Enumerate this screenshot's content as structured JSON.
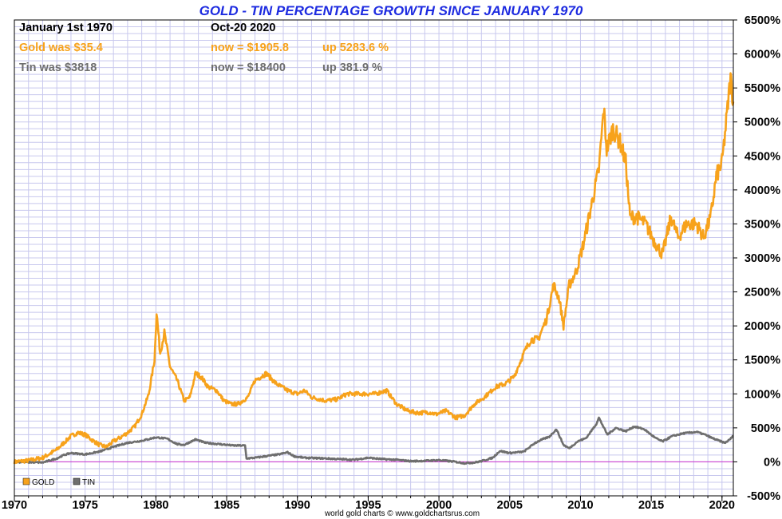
{
  "header": {
    "start_label": "January 1st 1970",
    "end_label": "Oct-20  2020",
    "gold_was": "Gold was $35.4",
    "gold_now": "now = $1905.8",
    "gold_up": "up 5283.6 %",
    "tin_was": "Tin was $3818",
    "tin_now": "now = $18400",
    "tin_up": "up 381.9 %"
  },
  "footer": {
    "credit": "world gold charts © www.goldchartsrus.com"
  },
  "colors": {
    "gold": "#f7a21b",
    "tin": "#6e6e6e",
    "zero_line": "#cc33cc",
    "grid": "#c8c8ee",
    "title": "#1d2be0"
  },
  "chart_data": {
    "type": "line",
    "title": "GOLD - TIN PERCENTAGE GROWTH SINCE JANUARY 1970",
    "xlabel": "",
    "ylabel": "",
    "xlim": [
      1970,
      2020.8
    ],
    "ylim": [
      -500,
      6500
    ],
    "x_ticks": [
      "1970",
      "1975",
      "1980",
      "1985",
      "1990",
      "1995",
      "2000",
      "2005",
      "2010",
      "2015",
      "2020"
    ],
    "y_ticks": [
      "6500%",
      "6000%",
      "5500%",
      "5000%",
      "4500%",
      "4000%",
      "3500%",
      "3000%",
      "2500%",
      "2000%",
      "1500%",
      "1000%",
      "500%",
      "0%",
      "-500%"
    ],
    "grid": true,
    "legend_position": "bottom-left",
    "series": [
      {
        "name": "GOLD",
        "color": "#f7a21b",
        "points": [
          [
            1970,
            0
          ],
          [
            1971,
            20
          ],
          [
            1972,
            60
          ],
          [
            1973,
            180
          ],
          [
            1973.6,
            300
          ],
          [
            1974,
            380
          ],
          [
            1974.5,
            430
          ],
          [
            1975,
            400
          ],
          [
            1975.5,
            320
          ],
          [
            1976,
            250
          ],
          [
            1976.5,
            220
          ],
          [
            1977,
            300
          ],
          [
            1977.5,
            360
          ],
          [
            1978,
            430
          ],
          [
            1978.5,
            520
          ],
          [
            1979,
            700
          ],
          [
            1979.5,
            1000
          ],
          [
            1979.9,
            1500
          ],
          [
            1980.05,
            2200
          ],
          [
            1980.3,
            1600
          ],
          [
            1980.6,
            1900
          ],
          [
            1981,
            1400
          ],
          [
            1981.5,
            1200
          ],
          [
            1982,
            900
          ],
          [
            1982.4,
            950
          ],
          [
            1982.8,
            1300
          ],
          [
            1983.2,
            1250
          ],
          [
            1983.7,
            1100
          ],
          [
            1984.3,
            1050
          ],
          [
            1984.8,
            900
          ],
          [
            1985.3,
            850
          ],
          [
            1985.8,
            850
          ],
          [
            1986.5,
            950
          ],
          [
            1987,
            1200
          ],
          [
            1987.8,
            1300
          ],
          [
            1988.5,
            1150
          ],
          [
            1989.3,
            1050
          ],
          [
            1990,
            1000
          ],
          [
            1990.5,
            1050
          ],
          [
            1991,
            950
          ],
          [
            1992,
            900
          ],
          [
            1992.8,
            920
          ],
          [
            1993.5,
            1000
          ],
          [
            1994.5,
            1000
          ],
          [
            1995.5,
            1000
          ],
          [
            1996.3,
            1050
          ],
          [
            1997,
            850
          ],
          [
            1997.8,
            750
          ],
          [
            1998.5,
            720
          ],
          [
            1999.3,
            730
          ],
          [
            1999.8,
            700
          ],
          [
            2000.5,
            750
          ],
          [
            2001.2,
            650
          ],
          [
            2001.8,
            680
          ],
          [
            2002.5,
            850
          ],
          [
            2003.2,
            950
          ],
          [
            2004,
            1100
          ],
          [
            2004.7,
            1150
          ],
          [
            2005.3,
            1250
          ],
          [
            2006,
            1600
          ],
          [
            2006.5,
            1800
          ],
          [
            2007,
            1800
          ],
          [
            2007.6,
            2100
          ],
          [
            2008.1,
            2600
          ],
          [
            2008.5,
            2400
          ],
          [
            2008.8,
            2000
          ],
          [
            2009.2,
            2600
          ],
          [
            2009.7,
            2800
          ],
          [
            2010.2,
            3200
          ],
          [
            2010.8,
            3800
          ],
          [
            2011.3,
            4300
          ],
          [
            2011.65,
            5200
          ],
          [
            2011.85,
            4600
          ],
          [
            2012.3,
            4900
          ],
          [
            2012.8,
            4700
          ],
          [
            2013.2,
            4400
          ],
          [
            2013.5,
            3600
          ],
          [
            2014,
            3600
          ],
          [
            2014.6,
            3500
          ],
          [
            2015.2,
            3250
          ],
          [
            2015.8,
            3050
          ],
          [
            2016.4,
            3600
          ],
          [
            2016.9,
            3300
          ],
          [
            2017.5,
            3500
          ],
          [
            2018.2,
            3500
          ],
          [
            2018.7,
            3300
          ],
          [
            2019.2,
            3600
          ],
          [
            2019.6,
            4200
          ],
          [
            2020.0,
            4400
          ],
          [
            2020.3,
            5000
          ],
          [
            2020.6,
            5650
          ],
          [
            2020.8,
            5300
          ]
        ]
      },
      {
        "name": "TIN",
        "color": "#6e6e6e",
        "points": [
          [
            1970,
            0
          ],
          [
            1972,
            -10
          ],
          [
            1973,
            50
          ],
          [
            1973.5,
            100
          ],
          [
            1974,
            130
          ],
          [
            1975,
            110
          ],
          [
            1976,
            150
          ],
          [
            1977,
            220
          ],
          [
            1978,
            280
          ],
          [
            1979,
            310
          ],
          [
            1980,
            360
          ],
          [
            1980.8,
            340
          ],
          [
            1981.5,
            260
          ],
          [
            1982,
            250
          ],
          [
            1982.8,
            330
          ],
          [
            1983.5,
            280
          ],
          [
            1984.5,
            260
          ],
          [
            1985.5,
            240
          ],
          [
            1986.3,
            240
          ],
          [
            1986.4,
            50
          ],
          [
            1987,
            60
          ],
          [
            1988,
            90
          ],
          [
            1988.7,
            110
          ],
          [
            1989.3,
            140
          ],
          [
            1989.8,
            80
          ],
          [
            1990.5,
            60
          ],
          [
            1992,
            50
          ],
          [
            1993,
            40
          ],
          [
            1994,
            30
          ],
          [
            1995,
            60
          ],
          [
            1996,
            40
          ],
          [
            1997,
            30
          ],
          [
            1998,
            10
          ],
          [
            1999,
            15
          ],
          [
            2000,
            25
          ],
          [
            2001,
            5
          ],
          [
            2001.8,
            -20
          ],
          [
            2002.5,
            -10
          ],
          [
            2003,
            10
          ],
          [
            2003.8,
            60
          ],
          [
            2004.3,
            160
          ],
          [
            2005,
            130
          ],
          [
            2006,
            150
          ],
          [
            2006.8,
            280
          ],
          [
            2007.3,
            330
          ],
          [
            2007.8,
            370
          ],
          [
            2008.3,
            480
          ],
          [
            2008.8,
            250
          ],
          [
            2009.2,
            200
          ],
          [
            2009.8,
            300
          ],
          [
            2010.4,
            350
          ],
          [
            2011.1,
            550
          ],
          [
            2011.3,
            650
          ],
          [
            2011.9,
            400
          ],
          [
            2012.5,
            500
          ],
          [
            2013.2,
            450
          ],
          [
            2013.8,
            520
          ],
          [
            2014.5,
            480
          ],
          [
            2015.3,
            350
          ],
          [
            2015.8,
            300
          ],
          [
            2016.5,
            380
          ],
          [
            2017.3,
            420
          ],
          [
            2018.2,
            440
          ],
          [
            2018.8,
            400
          ],
          [
            2019.3,
            350
          ],
          [
            2019.8,
            310
          ],
          [
            2020.2,
            280
          ],
          [
            2020.5,
            320
          ],
          [
            2020.8,
            382
          ]
        ]
      }
    ]
  }
}
